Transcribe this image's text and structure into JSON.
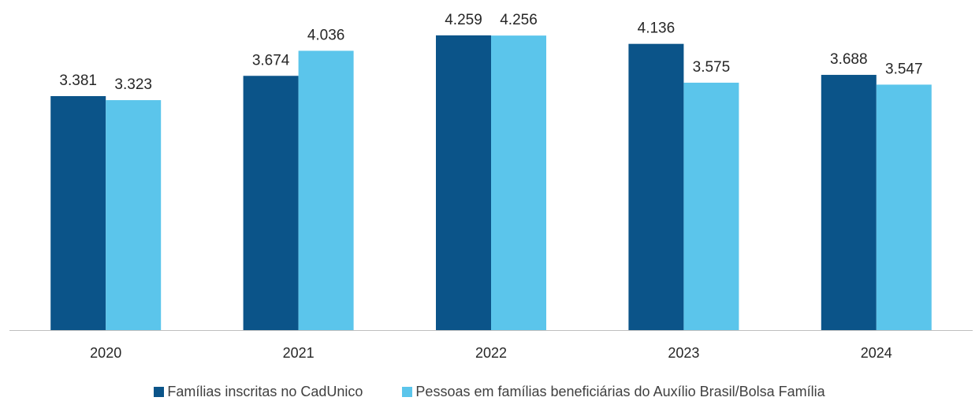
{
  "chart_data": {
    "type": "bar",
    "categories": [
      "2020",
      "2021",
      "2022",
      "2023",
      "2024"
    ],
    "series": [
      {
        "name": "Famílias inscritas no CadUnico",
        "values": [
          3.381,
          3.674,
          4.259,
          4.136,
          3.688
        ],
        "labels": [
          "3.381",
          "3.674",
          "4.259",
          "4.136",
          "3.688"
        ],
        "color": "#0b5489"
      },
      {
        "name": "Pessoas em famílias beneficiárias do Auxílio Brasil/Bolsa Família",
        "values": [
          3.323,
          4.036,
          4.256,
          3.575,
          3.547
        ],
        "labels": [
          "3.323",
          "4.036",
          "4.256",
          "3.575",
          "3.547"
        ],
        "color": "#5bc5eb"
      }
    ],
    "ylim": [
      0,
      4.36
    ],
    "grid": false,
    "legend_position": "bottom"
  }
}
